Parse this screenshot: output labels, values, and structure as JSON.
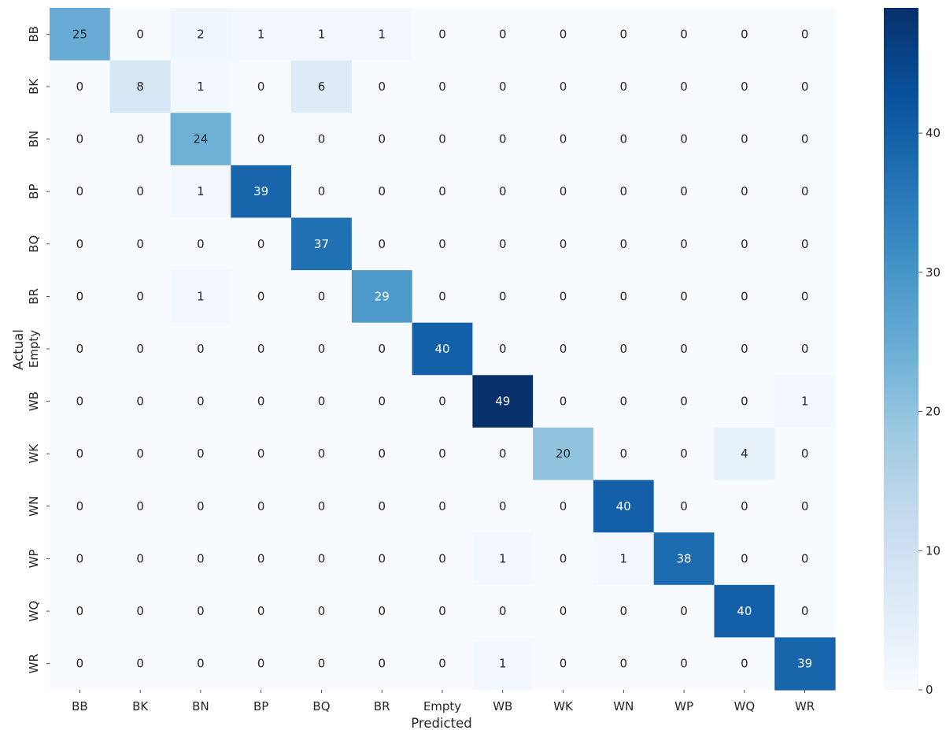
{
  "chart_data": {
    "type": "heatmap",
    "title": "",
    "xlabel": "Predicted",
    "ylabel": "Actual",
    "x_categories": [
      "BB",
      "BK",
      "BN",
      "BP",
      "BQ",
      "BR",
      "Empty",
      "WB",
      "WK",
      "WN",
      "WP",
      "WQ",
      "WR"
    ],
    "y_categories": [
      "BB",
      "BK",
      "BN",
      "BP",
      "BQ",
      "BR",
      "Empty",
      "WB",
      "WK",
      "WN",
      "WP",
      "WQ",
      "WR"
    ],
    "values": [
      [
        25,
        0,
        2,
        1,
        1,
        1,
        0,
        0,
        0,
        0,
        0,
        0,
        0
      ],
      [
        0,
        8,
        1,
        0,
        6,
        0,
        0,
        0,
        0,
        0,
        0,
        0,
        0
      ],
      [
        0,
        0,
        24,
        0,
        0,
        0,
        0,
        0,
        0,
        0,
        0,
        0,
        0
      ],
      [
        0,
        0,
        1,
        39,
        0,
        0,
        0,
        0,
        0,
        0,
        0,
        0,
        0
      ],
      [
        0,
        0,
        0,
        0,
        37,
        0,
        0,
        0,
        0,
        0,
        0,
        0,
        0
      ],
      [
        0,
        0,
        1,
        0,
        0,
        29,
        0,
        0,
        0,
        0,
        0,
        0,
        0
      ],
      [
        0,
        0,
        0,
        0,
        0,
        0,
        40,
        0,
        0,
        0,
        0,
        0,
        0
      ],
      [
        0,
        0,
        0,
        0,
        0,
        0,
        0,
        49,
        0,
        0,
        0,
        0,
        1
      ],
      [
        0,
        0,
        0,
        0,
        0,
        0,
        0,
        0,
        20,
        0,
        0,
        4,
        0
      ],
      [
        0,
        0,
        0,
        0,
        0,
        0,
        0,
        0,
        0,
        40,
        0,
        0,
        0
      ],
      [
        0,
        0,
        0,
        0,
        0,
        0,
        0,
        1,
        0,
        1,
        38,
        0,
        0
      ],
      [
        0,
        0,
        0,
        0,
        0,
        0,
        0,
        0,
        0,
        0,
        0,
        40,
        0
      ],
      [
        0,
        0,
        0,
        0,
        0,
        0,
        0,
        1,
        0,
        0,
        0,
        0,
        39
      ]
    ],
    "colorbar": {
      "ticks": [
        0,
        10,
        20,
        30,
        40
      ],
      "vmin": 0,
      "vmax": 49
    },
    "colormap": "Blues",
    "colors": [
      "#f7fbff",
      "#deebf7",
      "#c6dbef",
      "#9ecae1",
      "#6baed6",
      "#4292c6",
      "#2171b5",
      "#08519c",
      "#08306b"
    ],
    "light_text_color": "#ffffff",
    "dark_text_color": "#262626"
  }
}
